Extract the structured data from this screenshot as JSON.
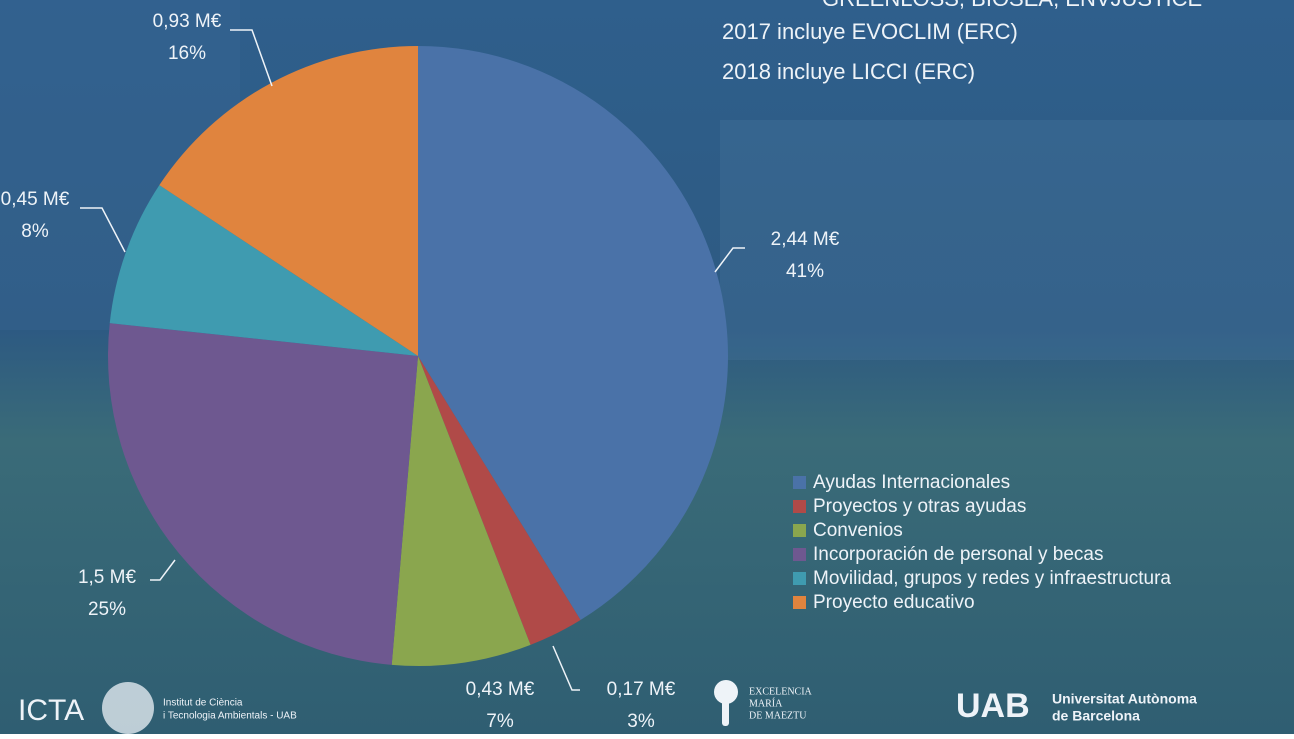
{
  "chart_data": {
    "type": "pie",
    "annotations": [
      "GREENLOSS, BIOSEA, ENVJUSTICE",
      "2017 incluye EVOCLIM (ERC)",
      "2018 incluye LICCI (ERC)"
    ],
    "categories": [
      "Ayudas Internacionales",
      "Proyectos y otras ayudas",
      "Convenios",
      "Incorporación de personal y becas",
      "Movilidad, grupos y redes y infraestructura",
      "Proyecto educativo"
    ],
    "values": [
      2.44,
      0.17,
      0.43,
      1.5,
      0.45,
      0.93
    ],
    "value_labels": [
      "2,44 M€",
      "0,17 M€",
      "0,43 M€",
      "1,5 M€",
      "0,45 M€",
      "0,93 M€"
    ],
    "percentages": [
      41,
      3,
      7,
      25,
      8,
      16
    ],
    "percentage_labels": [
      "41%",
      "3%",
      "7%",
      "25%",
      "8%",
      "16%"
    ],
    "colors": [
      "#4a72a8",
      "#b04a48",
      "#8aa64e",
      "#6e5890",
      "#3f9bb0",
      "#e0843e"
    ],
    "legend": "bottom-right"
  },
  "logos": {
    "icta": "ICTA",
    "icta_name": [
      "Institut de Ciència",
      "i Tecnologia Ambientals - UAB"
    ],
    "maeztu": [
      "EXCELENCIA",
      "MARÍA",
      "DE MAEZTU"
    ],
    "uab": "UAB",
    "uab_name": [
      "Universitat Autònoma",
      "de Barcelona"
    ]
  }
}
